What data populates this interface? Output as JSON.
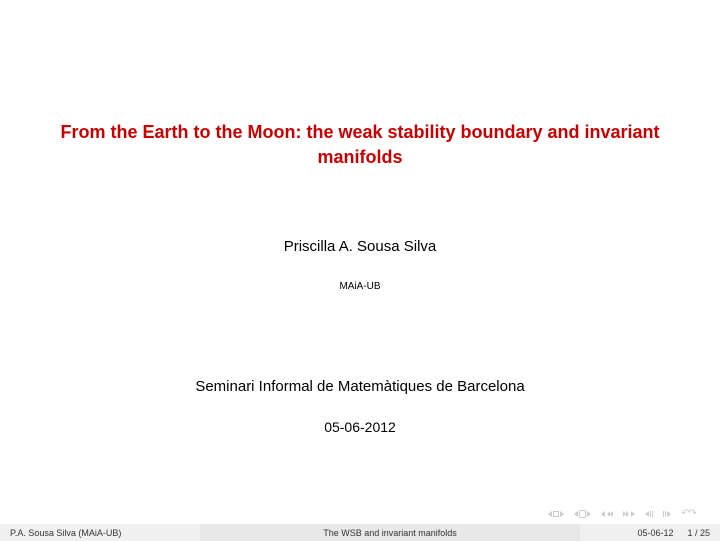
{
  "title": {
    "text": "From the Earth to the Moon: the weak stability boundary and invariant manifolds",
    "color": "#cc0000",
    "fontsize": 18
  },
  "author": {
    "text": "Priscilla A. Sousa Silva",
    "fontsize": 15,
    "color": "#000000"
  },
  "affiliation": {
    "text": "MAiA-UB",
    "fontsize": 10,
    "color": "#000000"
  },
  "seminar": {
    "text": "Seminari Informal de Matemàtiques de Barcelona",
    "fontsize": 15,
    "color": "#000000"
  },
  "date": {
    "text": "05-06-2012",
    "fontsize": 14,
    "color": "#000000"
  },
  "footer": {
    "left": "P.A. Sousa Silva  (MAiA-UB)",
    "center": "The WSB and invariant manifolds",
    "right_date": "05-06-12",
    "right_page": "1 / 25",
    "bg_left": "#f0f0f0",
    "bg_center": "#e8e8e8",
    "bg_right": "#f0f0f0"
  },
  "nav_icon_color": "#cccccc",
  "background_color": "#ffffff"
}
